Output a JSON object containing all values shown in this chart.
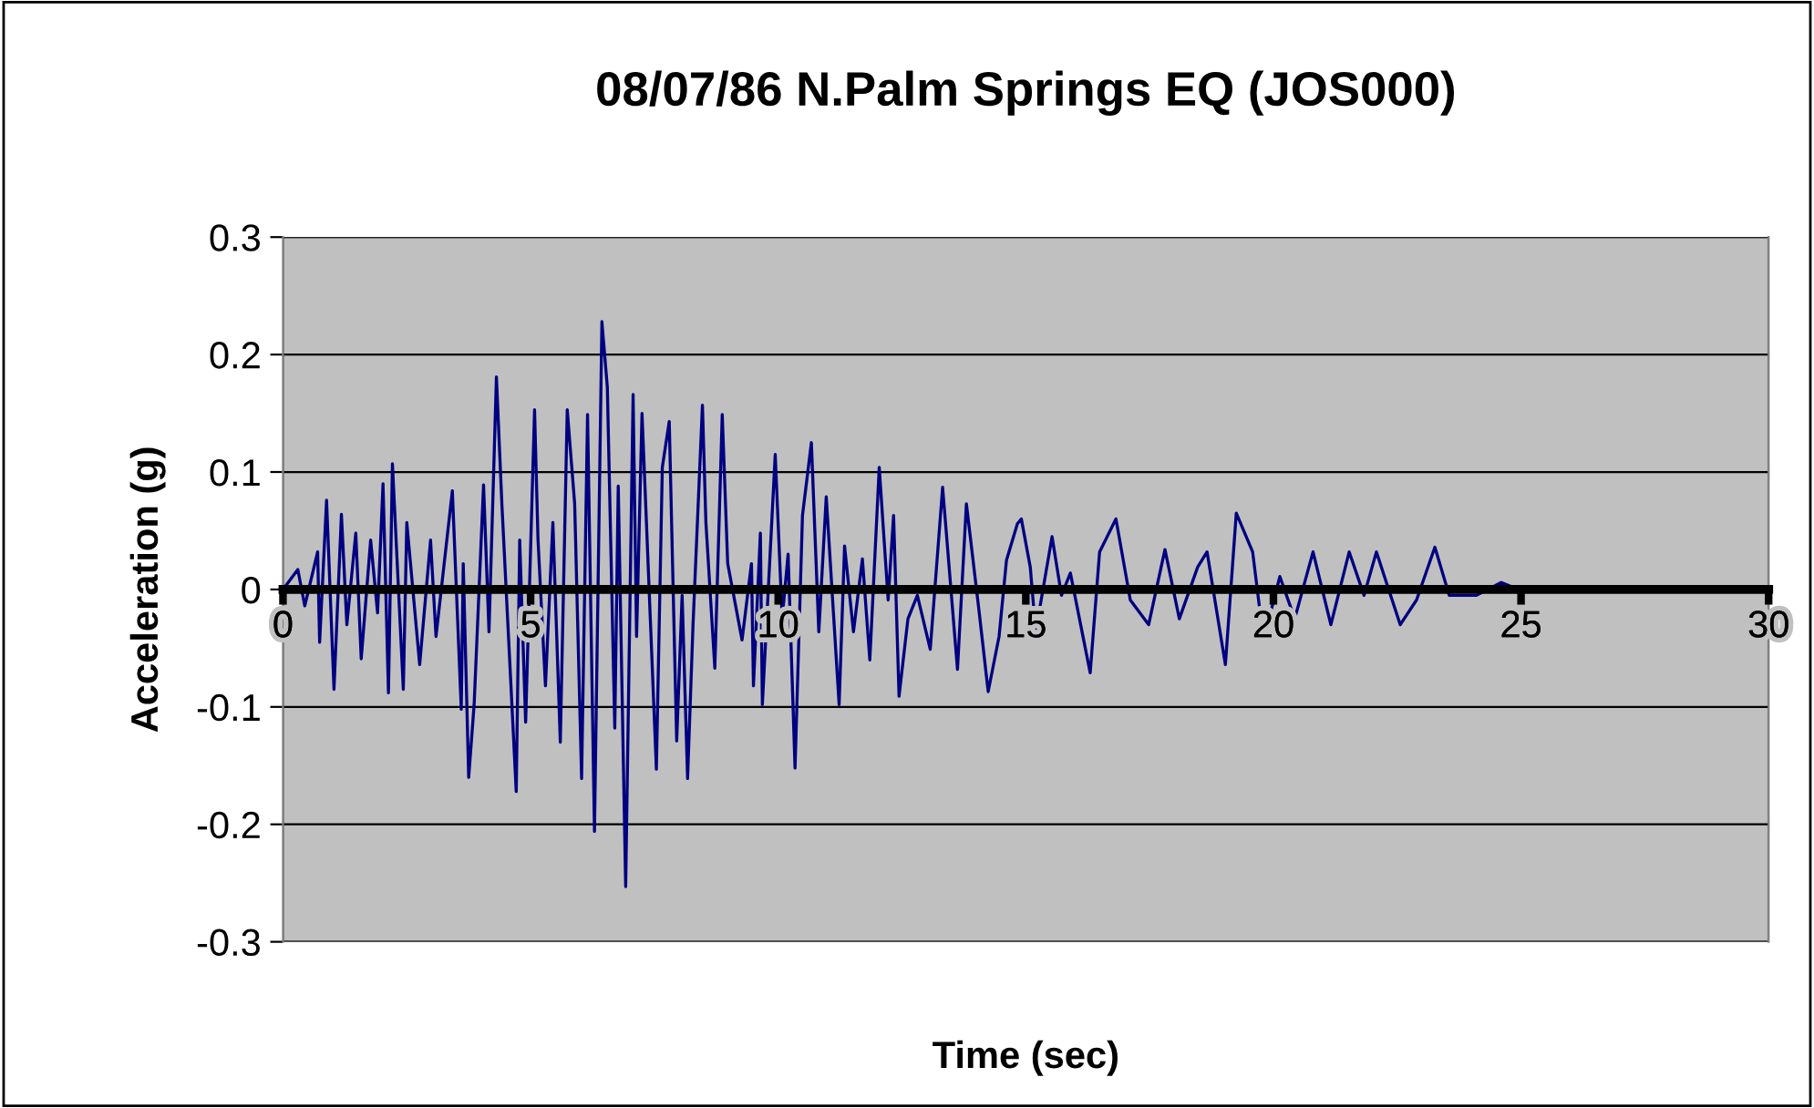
{
  "chart_data": {
    "type": "line",
    "title": "08/07/86 N.Palm Springs EQ (JOS000)",
    "xlabel": "Time (sec)",
    "ylabel": "Acceleration (g)",
    "series": [
      {
        "color": "#000080",
        "x": [
          0,
          0.3,
          0.44,
          0.7,
          0.74,
          0.88,
          1.03,
          1.18,
          1.29,
          1.47,
          1.58,
          1.77,
          1.91,
          2.02,
          2.13,
          2.21,
          2.43,
          2.5,
          2.76,
          2.98,
          3.09,
          3.42,
          3.6,
          3.64,
          3.75,
          3.86,
          4.05,
          4.16,
          4.31,
          4.42,
          4.53,
          4.71,
          4.78,
          4.9,
          5.08,
          5.15,
          5.3,
          5.45,
          5.6,
          5.74,
          5.89,
          6.03,
          6.15,
          6.29,
          6.44,
          6.55,
          6.7,
          6.77,
          6.92,
          7.07,
          7.14,
          7.25,
          7.54,
          7.66,
          7.8,
          7.95,
          8.06,
          8.17,
          8.28,
          8.47,
          8.54,
          8.72,
          8.87,
          8.98,
          9.27,
          9.46,
          9.5,
          9.64,
          9.68,
          9.94,
          10.08,
          10.2,
          10.34,
          10.49,
          10.67,
          10.82,
          10.97,
          11.23,
          11.34,
          11.52,
          11.7,
          11.85,
          12.04,
          12.22,
          12.33,
          12.44,
          12.62,
          12.81,
          13.07,
          13.32,
          13.62,
          13.8,
          14.06,
          14.24,
          14.46,
          14.61,
          14.83,
          14.91,
          15.09,
          15.2,
          15.53,
          15.72,
          15.9,
          16.3,
          16.49,
          16.82,
          17.11,
          17.48,
          17.81,
          18.1,
          18.47,
          18.66,
          19.03,
          19.25,
          19.58,
          19.8,
          20.13,
          20.43,
          20.8,
          21.16,
          21.53,
          21.83,
          22.08,
          22.56,
          22.89,
          23.26,
          23.55,
          24.1,
          24.6,
          24.95
        ],
        "values": [
          0,
          0.017,
          -0.014,
          0.032,
          -0.045,
          0.076,
          -0.085,
          0.064,
          -0.03,
          0.048,
          -0.059,
          0.042,
          -0.02,
          0.09,
          -0.088,
          0.107,
          -0.085,
          0.057,
          -0.064,
          0.042,
          -0.04,
          0.084,
          -0.102,
          0.022,
          -0.16,
          -0.098,
          0.089,
          -0.036,
          0.181,
          0.073,
          -0.02,
          -0.172,
          0.042,
          -0.113,
          0.153,
          0.042,
          -0.082,
          0.057,
          -0.13,
          0.153,
          0.073,
          -0.161,
          0.149,
          -0.206,
          0.228,
          0.172,
          -0.118,
          0.088,
          -0.253,
          0.166,
          -0.04,
          0.15,
          -0.153,
          0.104,
          0.143,
          -0.129,
          -0.005,
          -0.161,
          -0.03,
          0.157,
          0.057,
          -0.067,
          0.149,
          0.022,
          -0.043,
          0.022,
          -0.082,
          0.048,
          -0.098,
          0.115,
          -0.025,
          0.03,
          -0.152,
          0.063,
          0.125,
          -0.036,
          0.079,
          -0.098,
          0.037,
          -0.036,
          0.026,
          -0.06,
          0.104,
          -0.009,
          0.063,
          -0.091,
          -0.025,
          -0.005,
          -0.051,
          0.087,
          -0.068,
          0.073,
          -0.02,
          -0.087,
          -0.04,
          0.025,
          0.056,
          0.06,
          0.019,
          -0.036,
          0.045,
          -0.005,
          0.014,
          -0.071,
          0.032,
          0.06,
          -0.009,
          -0.03,
          0.034,
          -0.025,
          0.019,
          0.032,
          -0.064,
          0.065,
          0.032,
          -0.043,
          0.011,
          -0.025,
          0.032,
          -0.03,
          0.032,
          -0.005,
          0.032,
          -0.03,
          -0.009,
          0.036,
          -0.005,
          -0.005,
          0.006,
          0
        ]
      }
    ],
    "xlim": [
      0,
      30
    ],
    "xticks": [
      0,
      5,
      10,
      15,
      20,
      25,
      30
    ],
    "ylim": [
      -0.3,
      0.3
    ],
    "yticks": [
      -0.3,
      -0.2,
      -0.1,
      0,
      0.1,
      0.2,
      0.3
    ],
    "grid": "y",
    "legend": false,
    "marker": "none",
    "line_style": "solid"
  }
}
